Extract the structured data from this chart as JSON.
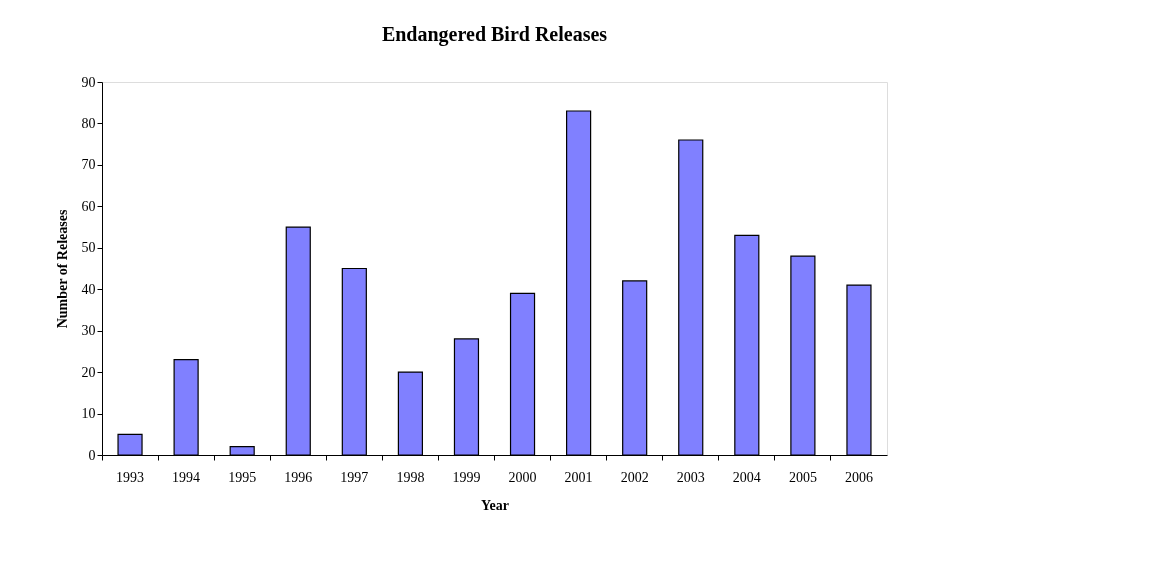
{
  "chart_data": {
    "type": "bar",
    "title": "Endangered Bird Releases",
    "xlabel": "Year",
    "ylabel": "Number of Releases",
    "categories": [
      "1993",
      "1994",
      "1995",
      "1996",
      "1997",
      "1998",
      "1999",
      "2000",
      "2001",
      "2002",
      "2003",
      "2004",
      "2005",
      "2006"
    ],
    "values": [
      5,
      23,
      2,
      55,
      45,
      20,
      28,
      39,
      83,
      42,
      76,
      53,
      48,
      41
    ],
    "color": "#8080ff",
    "ylim": [
      0,
      90
    ],
    "yticks": [
      0,
      10,
      20,
      30,
      40,
      50,
      60,
      70,
      80,
      90
    ],
    "grid": false
  }
}
